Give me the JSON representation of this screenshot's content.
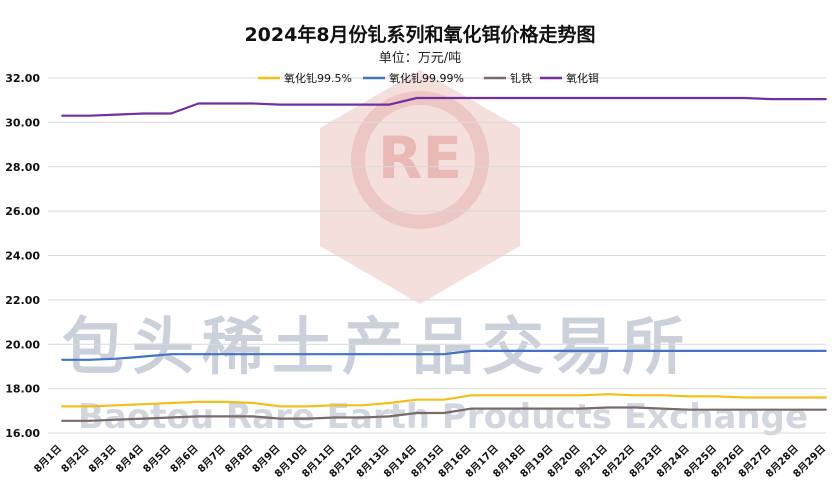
{
  "chart_data": {
    "type": "line",
    "title": "2024年8月份钆系列和氧化铒价格走势图",
    "subtitle": "单位：万元/吨",
    "ylim": [
      16,
      32
    ],
    "yticks": [
      "16.00",
      "18.00",
      "20.00",
      "22.00",
      "24.00",
      "26.00",
      "28.00",
      "30.00",
      "32.00"
    ],
    "grid": true,
    "legend_position": "top",
    "categories": [
      "8月1日",
      "8月2日",
      "8月3日",
      "8月4日",
      "8月5日",
      "8月6日",
      "8月7日",
      "8月8日",
      "8月9日",
      "8月10日",
      "8月11日",
      "8月12日",
      "8月13日",
      "8月14日",
      "8月15日",
      "8月16日",
      "8月17日",
      "8月18日",
      "8月19日",
      "8月20日",
      "8月21日",
      "8月22日",
      "8月23日",
      "8月24日",
      "8月25日",
      "8月26日",
      "8月27日",
      "8月28日",
      "8月29日"
    ],
    "series": [
      {
        "name": "氧化钆99.5%",
        "color": "#f2c01e",
        "values": [
          17.2,
          17.2,
          17.25,
          17.3,
          17.35,
          17.4,
          17.4,
          17.35,
          17.2,
          17.2,
          17.25,
          17.25,
          17.35,
          17.5,
          17.5,
          17.7,
          17.7,
          17.7,
          17.7,
          17.7,
          17.75,
          17.7,
          17.7,
          17.65,
          17.65,
          17.6,
          17.6,
          17.6,
          17.6
        ]
      },
      {
        "name": "氧化钆99.99%",
        "color": "#4472c4",
        "values": [
          19.3,
          19.3,
          19.35,
          19.45,
          19.55,
          19.55,
          19.55,
          19.55,
          19.55,
          19.55,
          19.55,
          19.55,
          19.55,
          19.55,
          19.55,
          19.7,
          19.7,
          19.7,
          19.7,
          19.7,
          19.7,
          19.7,
          19.7,
          19.7,
          19.7,
          19.7,
          19.7,
          19.7,
          19.7
        ]
      },
      {
        "name": "钆铁",
        "color": "#7a6a6a",
        "values": [
          16.55,
          16.55,
          16.6,
          16.65,
          16.7,
          16.75,
          16.75,
          16.75,
          16.65,
          16.65,
          16.7,
          16.7,
          16.75,
          16.9,
          16.9,
          17.1,
          17.1,
          17.1,
          17.1,
          17.1,
          17.15,
          17.15,
          17.1,
          17.05,
          17.05,
          17.05,
          17.05,
          17.05,
          17.05
        ]
      },
      {
        "name": "氧化铒",
        "color": "#7030a0",
        "values": [
          30.3,
          30.3,
          30.35,
          30.4,
          30.4,
          30.85,
          30.85,
          30.85,
          30.8,
          30.8,
          30.8,
          30.8,
          30.8,
          31.1,
          31.1,
          31.1,
          31.1,
          31.1,
          31.1,
          31.1,
          31.1,
          31.1,
          31.1,
          31.1,
          31.1,
          31.1,
          31.05,
          31.05,
          31.05
        ]
      }
    ]
  },
  "watermark": {
    "logo_text": "RE",
    "name_cn": "包头稀土产品交易所",
    "name_en": "Baotou Rare Earth Products Exchange"
  }
}
